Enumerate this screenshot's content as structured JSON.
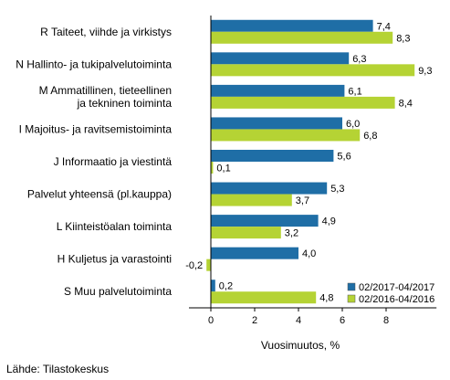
{
  "chart_data": {
    "type": "bar",
    "orientation": "horizontal",
    "categories": [
      [
        "R Taiteet, viihde ja virkistys"
      ],
      [
        "N Hallinto- ja tukipalvelutoiminta"
      ],
      [
        "M Ammatillinen, tieteellinen",
        "ja tekninen toiminta"
      ],
      [
        "I Majoitus- ja ravitsemistoiminta"
      ],
      [
        "J Informaatio ja viestintä"
      ],
      [
        "Palvelut yhteensä (pl.kauppa)"
      ],
      [
        "L Kiinteistöalan toiminta"
      ],
      [
        "H Kuljetus ja varastointi"
      ],
      [
        "S Muu palvelutoiminta"
      ]
    ],
    "series": [
      {
        "name": "02/2017-04/2017",
        "color": "#1f6ea6",
        "values": [
          7.4,
          6.3,
          6.1,
          6.0,
          5.6,
          5.3,
          4.9,
          4.0,
          0.2
        ]
      },
      {
        "name": "02/2016-04/2016",
        "color": "#b5d334",
        "values": [
          8.3,
          9.3,
          8.4,
          6.8,
          0.1,
          3.7,
          3.2,
          -0.2,
          4.8
        ]
      }
    ],
    "value_labels": [
      [
        "7,4",
        "6,3",
        "6,1",
        "6,0",
        "5,6",
        "5,3",
        "4,9",
        "4,0",
        "0,2"
      ],
      [
        "8,3",
        "9,3",
        "8,4",
        "6,8",
        "0,1",
        "3,7",
        "3,2",
        "-0,2",
        "4,8"
      ]
    ],
    "xticks": [
      "0",
      "2",
      "4",
      "6",
      "8"
    ],
    "xtick_values": [
      0,
      2,
      4,
      6,
      8
    ],
    "xlim": [
      -1,
      10.3
    ],
    "xlabel": "Vuosimuutos, %",
    "legend_position": "bottom-right",
    "grid": false
  },
  "source": "Lähde: Tilastokeskus"
}
